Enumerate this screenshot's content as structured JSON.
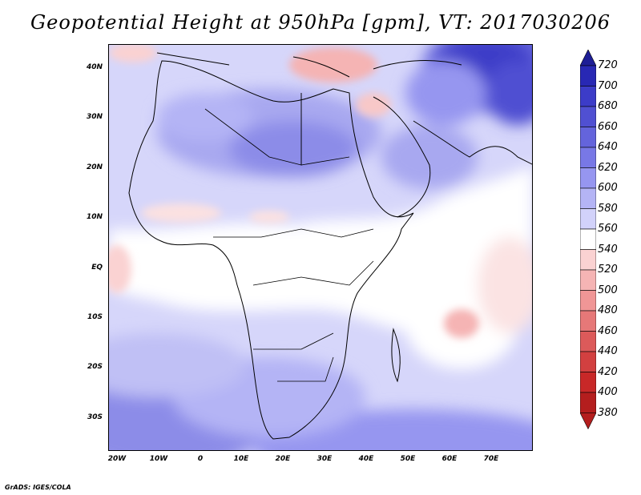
{
  "title": "Geopotential Height at 950hPa [gpm], VT: 2017030206",
  "credit": "GrADS: IGES/COLA",
  "map": {
    "lat_labels": [
      "40N",
      "30N",
      "20N",
      "10N",
      "EQ",
      "10S",
      "20S",
      "30S"
    ],
    "lon_labels": [
      "20W",
      "10W",
      "0",
      "10E",
      "20E",
      "30E",
      "40E",
      "50E",
      "60E",
      "70E"
    ]
  },
  "colorbar": {
    "labels": [
      "720",
      "700",
      "680",
      "660",
      "640",
      "620",
      "600",
      "580",
      "560",
      "540",
      "520",
      "500",
      "480",
      "460",
      "440",
      "420",
      "400",
      "380"
    ],
    "colors": [
      "#1e1e96",
      "#2828b4",
      "#3c3cc8",
      "#5050d2",
      "#6464dc",
      "#7878e6",
      "#9696f0",
      "#b4b4f5",
      "#d2d2fa",
      "#ffffff",
      "#fad2d2",
      "#f5b4b4",
      "#f09696",
      "#e67878",
      "#dc5a5a",
      "#d24040",
      "#c82828",
      "#b41e1e"
    ]
  }
}
